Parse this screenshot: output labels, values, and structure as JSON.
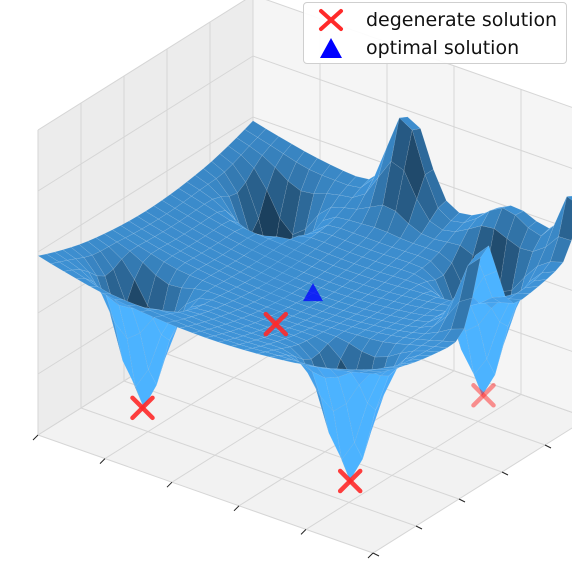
{
  "chart_data": {
    "type": "surface3d",
    "title": "",
    "xlabel": "",
    "ylabel": "",
    "zlabel": "",
    "surface_color": "#3d8fd1",
    "grid": true,
    "legend_position": "top-right",
    "series": [
      {
        "name": "degenerate solution",
        "marker": "x",
        "color": "#ff2a2a",
        "points": [
          {
            "x": 0.62,
            "y": -0.62
          },
          {
            "x": -0.62,
            "y": -0.62
          },
          {
            "x": 0.62,
            "y": 0.62
          },
          {
            "x": -0.62,
            "y": 0.62
          }
        ]
      },
      {
        "name": "optimal solution",
        "marker": "triangle",
        "color": "#0000ff",
        "points": [
          {
            "x": 0.0,
            "y": 0.0
          }
        ]
      }
    ]
  }
}
